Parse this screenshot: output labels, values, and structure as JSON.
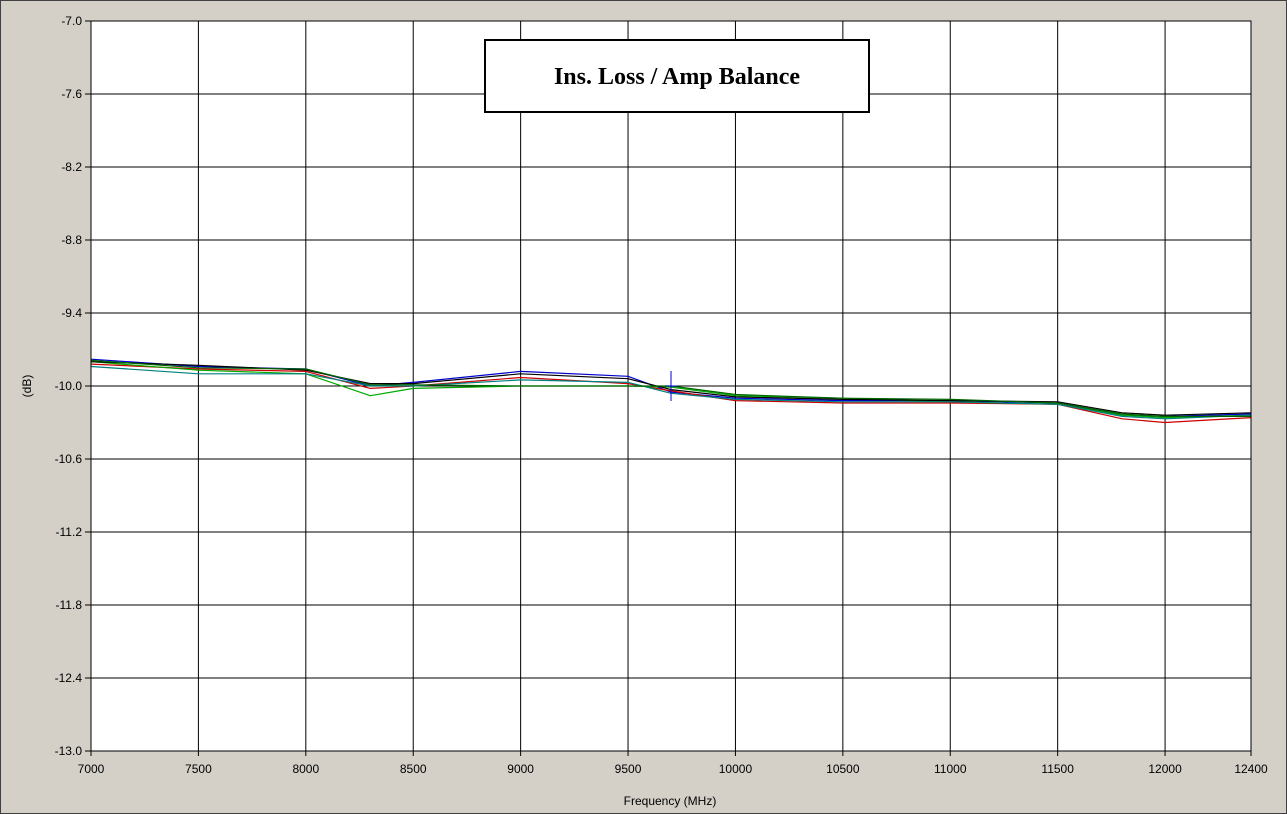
{
  "chart_data": {
    "type": "line",
    "title": "Ins. Loss / Amp Balance",
    "xlabel": "Frequency (MHz)",
    "ylabel": "(dB)",
    "xlim": [
      7000,
      12400
    ],
    "ylim": [
      -13.0,
      -7.0
    ],
    "x_ticks": [
      7000,
      7500,
      8000,
      8500,
      9000,
      9500,
      10000,
      10500,
      11000,
      11500,
      12000,
      12400
    ],
    "x_tick_labels": [
      "7000",
      "7500",
      "8000",
      "8500",
      "9000",
      "9500",
      "10000",
      "10500",
      "11000",
      "11500",
      "12000",
      "12400"
    ],
    "y_ticks": [
      -7.0,
      -7.6,
      -8.2,
      -8.8,
      -9.4,
      -10.0,
      -10.6,
      -11.2,
      -11.8,
      -12.4,
      -13.0
    ],
    "y_tick_labels": [
      "-7.0",
      "-7.6",
      "-8.2",
      "-8.8",
      "-9.4",
      "-10.0",
      "-10.6",
      "-11.2",
      "-11.8",
      "-12.4",
      "-13.0"
    ],
    "grid": true,
    "legend": "none",
    "x": [
      7000,
      7500,
      8000,
      8300,
      8500,
      9000,
      9500,
      9700,
      10000,
      10500,
      11000,
      11500,
      11800,
      12000,
      12400
    ],
    "series": [
      {
        "color": "#0000cc",
        "values": [
          -9.78,
          -9.84,
          -9.86,
          -10.0,
          -9.97,
          -9.88,
          -9.92,
          -10.05,
          -10.1,
          -10.12,
          -10.12,
          -10.14,
          -10.24,
          -10.25,
          -10.23
        ]
      },
      {
        "color": "#cc0000",
        "values": [
          -9.82,
          -9.86,
          -9.88,
          -10.02,
          -10.0,
          -9.93,
          -9.98,
          -10.04,
          -10.12,
          -10.14,
          -10.14,
          -10.15,
          -10.27,
          -10.3,
          -10.26
        ]
      },
      {
        "color": "#00aa00",
        "values": [
          -9.8,
          -9.87,
          -9.9,
          -10.08,
          -10.02,
          -10.0,
          -10.0,
          -10.01,
          -10.08,
          -10.1,
          -10.13,
          -10.15,
          -10.24,
          -10.26,
          -10.24
        ]
      },
      {
        "color": "#000000",
        "values": [
          -9.8,
          -9.83,
          -9.87,
          -9.98,
          -9.98,
          -9.9,
          -9.94,
          -10.03,
          -10.09,
          -10.11,
          -10.12,
          -10.13,
          -10.22,
          -10.24,
          -10.22
        ]
      },
      {
        "color": "#008080",
        "values": [
          -9.84,
          -9.9,
          -9.9,
          -10.0,
          -10.0,
          -9.95,
          -9.97,
          -10.06,
          -10.11,
          -10.13,
          -10.13,
          -10.15,
          -10.25,
          -10.27,
          -10.24
        ]
      },
      {
        "color": "#006400",
        "values": [
          -9.79,
          -9.85,
          -9.86,
          -9.99,
          -9.99,
          -10.0,
          -10.0,
          -10.0,
          -10.07,
          -10.1,
          -10.11,
          -10.14,
          -10.23,
          -10.25,
          -10.25
        ]
      }
    ]
  }
}
